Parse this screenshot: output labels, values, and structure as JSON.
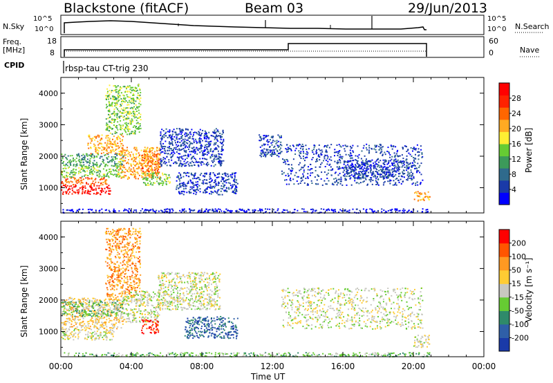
{
  "header": {
    "station": "Blackstone (fitACF)",
    "beam": "Beam 03",
    "date": "29/Jun/2013"
  },
  "top_panels": {
    "nsky_label": "N.Sky",
    "nsearch_label": "N.Search",
    "left_ticks": [
      "10^5",
      "10^0"
    ],
    "right_ticks": [
      "10^5",
      "10^0"
    ],
    "freq_label_1": "Freq.",
    "freq_label_2": "[MHz]",
    "freq_ticks": [
      "18",
      "8"
    ],
    "nave_label": "Nave",
    "nave_ticks": [
      "60",
      "0"
    ],
    "cpid_label": "CPID",
    "cpid_text": "rbsp-tau CT-trig 230"
  },
  "colors": {
    "power": [
      "#0000ff",
      "#1a3aa8",
      "#2f6a8c",
      "#3c9a5a",
      "#66cc33",
      "#ffee33",
      "#ffaa22",
      "#ff6600",
      "#ff2200",
      "#ff0000"
    ],
    "velocity": [
      "#1a3aa8",
      "#2f5fa8",
      "#2f8a6a",
      "#66cc33",
      "#c8c8c0",
      "#ffcc33",
      "#ff9922",
      "#ff5500",
      "#ff0000"
    ],
    "ground": "#c0c0b8"
  },
  "chart_data": [
    {
      "type": "heatmap",
      "title": "",
      "xlabel": "",
      "ylabel": "Slant Range [km]",
      "colorbar_label": "Power [dB]",
      "colorbar_ticks": [
        "28",
        "24",
        "20",
        "16",
        "12",
        "8",
        "4"
      ],
      "yticks": [
        "4000",
        "3000",
        "2000",
        "1000"
      ],
      "ylim": [
        200,
        4500
      ],
      "xlim_hours": [
        0,
        24
      ],
      "patches": [
        {
          "t0": 0.0,
          "t1": 2.9,
          "r0": 800,
          "r1": 1100,
          "level": 9
        },
        {
          "t0": 0.0,
          "t1": 2.6,
          "r0": 1100,
          "r1": 1350,
          "level": 7
        },
        {
          "t0": 0.0,
          "t1": 3.5,
          "r0": 1350,
          "r1": 1700,
          "level": 4
        },
        {
          "t0": 0.0,
          "t1": 3.6,
          "r0": 1700,
          "r1": 2100,
          "level": 3
        },
        {
          "t0": 1.5,
          "t1": 3.5,
          "r0": 2100,
          "r1": 2700,
          "level": 6
        },
        {
          "t0": 2.5,
          "t1": 4.5,
          "r0": 2700,
          "r1": 4300,
          "level": 4
        },
        {
          "t0": 3.2,
          "t1": 5.6,
          "r0": 1300,
          "r1": 2300,
          "level": 6
        },
        {
          "t0": 4.5,
          "t1": 5.6,
          "r0": 1500,
          "r1": 2100,
          "level": 7
        },
        {
          "t0": 4.6,
          "t1": 6.2,
          "r0": 1100,
          "r1": 1500,
          "level": 4
        },
        {
          "t0": 5.6,
          "t1": 9.2,
          "r0": 1700,
          "r1": 2900,
          "level": 1
        },
        {
          "t0": 6.5,
          "t1": 10.0,
          "r0": 800,
          "r1": 1500,
          "level": 1
        },
        {
          "t0": 11.2,
          "t1": 12.5,
          "r0": 2000,
          "r1": 2700,
          "level": 1
        },
        {
          "t0": 12.5,
          "t1": 20.5,
          "r0": 1100,
          "r1": 2400,
          "level": 1
        },
        {
          "t0": 16.0,
          "t1": 20.0,
          "r0": 1300,
          "r1": 1900,
          "level": 1
        },
        {
          "t0": 20.0,
          "t1": 20.9,
          "r0": 600,
          "r1": 900,
          "level": 6
        },
        {
          "t0": 0.0,
          "t1": 20.9,
          "r0": 220,
          "r1": 350,
          "level": 0
        }
      ]
    },
    {
      "type": "heatmap",
      "title": "",
      "xlabel": "Time UT",
      "ylabel": "Slant Range [km]",
      "colorbar_label": "Velocity [m s⁻¹]",
      "colorbar_ticks": [
        "200",
        "100",
        "50",
        "15",
        "-15",
        "-50",
        "-100",
        "-200"
      ],
      "yticks": [
        "4000",
        "3000",
        "2000",
        "1000"
      ],
      "xticks": [
        "00:00",
        "04:00",
        "08:00",
        "12:00",
        "16:00",
        "20:00",
        "00:00"
      ],
      "ylim": [
        200,
        4500
      ],
      "xlim_hours": [
        0,
        24
      ],
      "patches": [
        {
          "t0": 0.0,
          "t1": 3.0,
          "r0": 750,
          "r1": 1100,
          "level": 4
        },
        {
          "t0": 0.0,
          "t1": 3.5,
          "r0": 1100,
          "r1": 2100,
          "level": 5
        },
        {
          "t0": 0.0,
          "t1": 3.5,
          "r0": 1500,
          "r1": 2000,
          "level": 3
        },
        {
          "t0": 2.5,
          "t1": 4.5,
          "r0": 2100,
          "r1": 4300,
          "level": 6
        },
        {
          "t0": 3.5,
          "t1": 5.6,
          "r0": 1300,
          "r1": 2300,
          "level": 4
        },
        {
          "t0": 4.5,
          "t1": 5.5,
          "r0": 950,
          "r1": 1400,
          "level": 8
        },
        {
          "t0": 5.5,
          "t1": 9.0,
          "r0": 1700,
          "r1": 2900,
          "level": 4
        },
        {
          "t0": 7.0,
          "t1": 10.0,
          "r0": 800,
          "r1": 1500,
          "level": 1
        },
        {
          "t0": 12.5,
          "t1": 20.5,
          "r0": 1100,
          "r1": 2400,
          "level": 4
        },
        {
          "t0": 20.0,
          "t1": 20.9,
          "r0": 500,
          "r1": 900,
          "level": 4
        },
        {
          "t0": 0.0,
          "t1": 20.9,
          "r0": 220,
          "r1": 350,
          "level": 3
        }
      ]
    }
  ]
}
